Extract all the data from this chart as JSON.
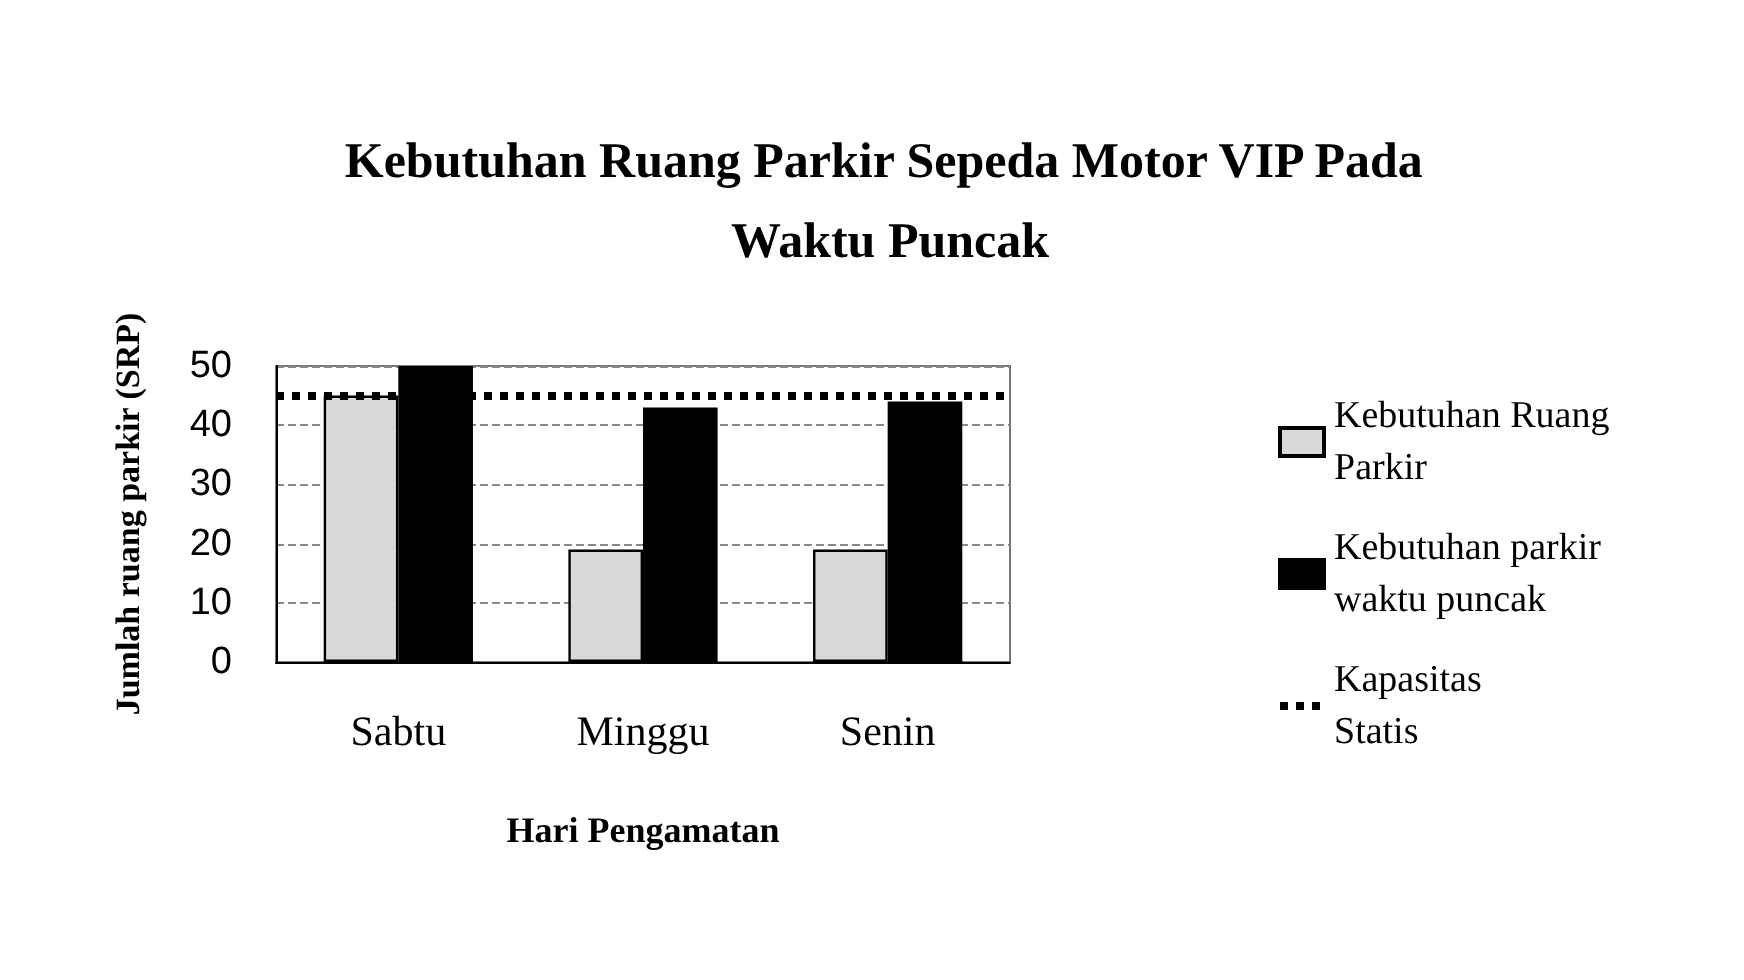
{
  "chart_data": {
    "type": "bar",
    "title": "Kebutuhan Ruang Parkir Sepeda Motor VIP Pada Waktu Puncak",
    "xlabel": "Hari Pengamatan",
    "ylabel": "Jumlah ruang parkir (SRP)",
    "categories": [
      "Sabtu",
      "Minggu",
      "Senin"
    ],
    "series": [
      {
        "name": "Kebutuhan Ruang Parkir",
        "color": "#d9d9d9",
        "values": [
          45,
          19,
          19
        ]
      },
      {
        "name": "Kebutuhan parkir waktu puncak",
        "color": "#000000",
        "values": [
          50,
          43,
          44
        ]
      }
    ],
    "ylim": [
      0,
      50
    ],
    "yticks": [
      0,
      10,
      20,
      30,
      40,
      50
    ],
    "grid": "y",
    "legend": "right",
    "ref_lines": [
      {
        "axis": "y",
        "value": 45,
        "label": "Kapasitas Statis",
        "color": "#000000",
        "line_style": "dotted"
      }
    ]
  }
}
